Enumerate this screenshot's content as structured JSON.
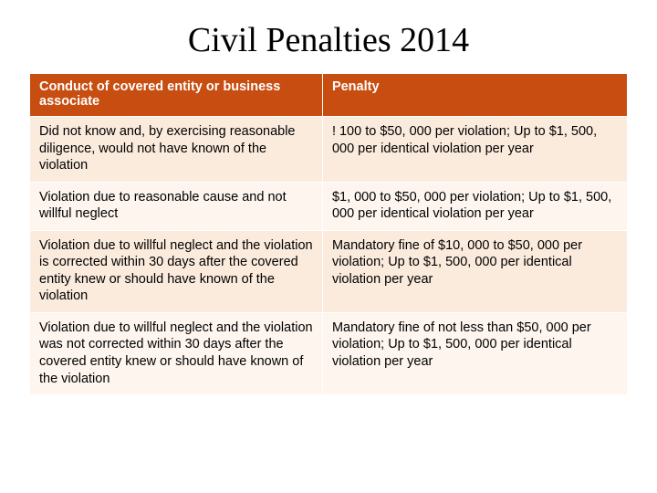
{
  "title": "Civil Penalties 2014",
  "table": {
    "header_bg": "#c74d11",
    "header_fg": "#ffffff",
    "band_a_bg": "#fbebdd",
    "band_b_bg": "#fdf5ee",
    "text_color": "#000000",
    "font_size_pt": 11,
    "columns": [
      {
        "label": "Conduct of covered entity or business associate",
        "width_pct": 49
      },
      {
        "label": "Penalty",
        "width_pct": 51
      }
    ],
    "rows": [
      {
        "conduct": "Did not know and, by exercising reasonable diligence, would not have known of the violation",
        "penalty": "! 100 to $50, 000 per violation; Up to $1, 500, 000 per identical violation per year"
      },
      {
        "conduct": "Violation due to reasonable cause and not willful neglect",
        "penalty": "$1, 000 to $50, 000 per violation; Up to $1, 500, 000 per identical violation per year"
      },
      {
        "conduct": "Violation due to willful neglect and the violation is corrected within 30 days after the covered entity knew or should have known of the violation",
        "penalty": "Mandatory fine of $10, 000 to $50, 000 per violation; Up to $1, 500, 000 per identical violation per year"
      },
      {
        "conduct": "Violation due to willful neglect and the violation was not corrected within 30 days after the covered entity knew or should have known of the violation",
        "penalty": "Mandatory fine of not less than $50, 000 per violation; Up to $1, 500, 000 per identical violation per year"
      }
    ]
  }
}
